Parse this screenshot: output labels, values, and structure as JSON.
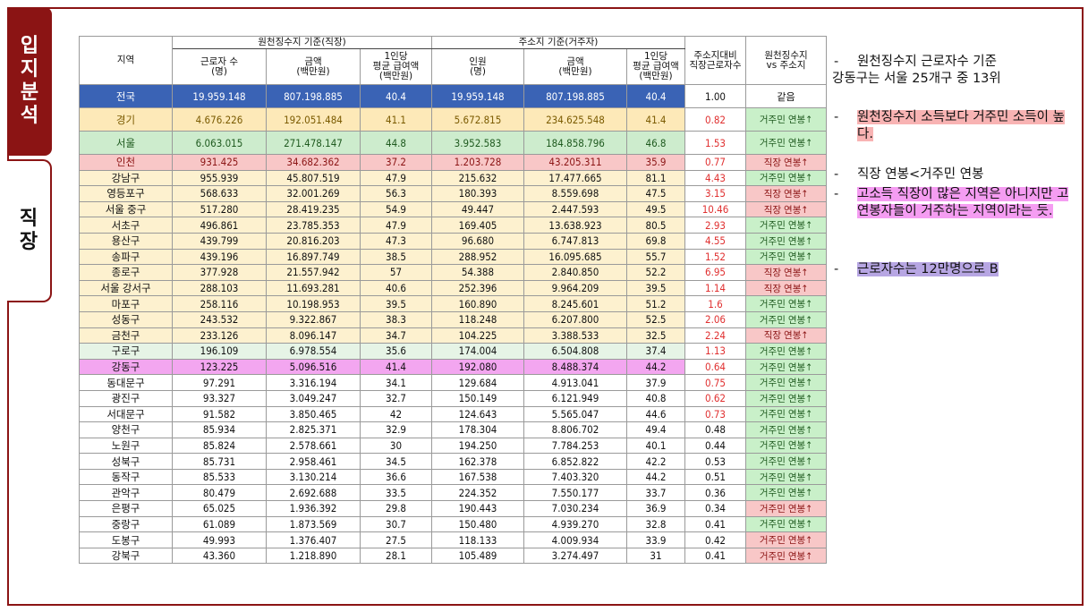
{
  "tabs": [
    {
      "label_chars": [
        "입",
        "지",
        "분",
        "석"
      ],
      "active": true
    },
    {
      "label_chars": [
        "직",
        "장"
      ],
      "active": false
    }
  ],
  "table": {
    "header": {
      "region": "지역",
      "group_workplace": "원천징수지 기준(직장)",
      "group_residence": "주소지 기준(거주자)",
      "workers": [
        "근로자 수",
        "(명)"
      ],
      "amount": [
        "금액",
        "(백만원)"
      ],
      "avg_pay": [
        "1인당",
        "평균 급여액",
        "(백만원)"
      ],
      "persons": [
        "인원",
        "(명)"
      ],
      "amount2": [
        "금액",
        "(백만원)"
      ],
      "avg_pay2": [
        "1인당",
        "평균 급여액",
        "(백만원)"
      ],
      "ratio": [
        "주소지대비",
        "직장근로자수"
      ],
      "compare": [
        "원천징수지",
        "vs 주소지"
      ]
    },
    "rows": [
      {
        "region": "전국",
        "workers": "19.959.148",
        "amount": "807.198.885",
        "avg": "40.4",
        "persons": "19.959.148",
        "amount2": "807.198.885",
        "avg2": "40.4",
        "ratio": "1.00",
        "tag": "같음",
        "style": "national",
        "ratio_color": "black",
        "tag_style": "same"
      },
      {
        "region": "경기",
        "workers": "4.676.226",
        "amount": "192.051.484",
        "avg": "41.1",
        "persons": "5.672.815",
        "amount2": "234.625.548",
        "avg2": "41.4",
        "ratio": "0.82",
        "tag": "거주민 연봉↑",
        "style": "gyeonggi",
        "ratio_color": "red",
        "tag_style": "res"
      },
      {
        "region": "서울",
        "workers": "6.063.015",
        "amount": "271.478.147",
        "avg": "44.8",
        "persons": "3.952.583",
        "amount2": "184.858.796",
        "avg2": "46.8",
        "ratio": "1.53",
        "tag": "거주민 연봉↑",
        "style": "seoul",
        "ratio_color": "red",
        "tag_style": "res"
      },
      {
        "region": "인천",
        "workers": "931.425",
        "amount": "34.682.362",
        "avg": "37.2",
        "persons": "1.203.728",
        "amount2": "43.205.311",
        "avg2": "35.9",
        "ratio": "0.77",
        "tag": "직장 연봉↑",
        "style": "incheon",
        "ratio_color": "red",
        "tag_style": "job"
      },
      {
        "region": "강남구",
        "workers": "955.939",
        "amount": "45.807.519",
        "avg": "47.9",
        "persons": "215.632",
        "amount2": "17.477.665",
        "avg2": "81.1",
        "ratio": "4.43",
        "tag": "거주민 연봉↑",
        "style": "yellow",
        "ratio_color": "red",
        "tag_style": "res"
      },
      {
        "region": "영등포구",
        "workers": "568.633",
        "amount": "32.001.269",
        "avg": "56.3",
        "persons": "180.393",
        "amount2": "8.559.698",
        "avg2": "47.5",
        "ratio": "3.15",
        "tag": "직장 연봉↑",
        "style": "yellow",
        "ratio_color": "red",
        "tag_style": "job"
      },
      {
        "region": "서울 중구",
        "workers": "517.280",
        "amount": "28.419.235",
        "avg": "54.9",
        "persons": "49.447",
        "amount2": "2.447.593",
        "avg2": "49.5",
        "ratio": "10.46",
        "tag": "직장 연봉↑",
        "style": "yellow",
        "ratio_color": "red",
        "tag_style": "job"
      },
      {
        "region": "서초구",
        "workers": "496.861",
        "amount": "23.785.353",
        "avg": "47.9",
        "persons": "169.405",
        "amount2": "13.638.923",
        "avg2": "80.5",
        "ratio": "2.93",
        "tag": "거주민 연봉↑",
        "style": "yellow",
        "ratio_color": "red",
        "tag_style": "res"
      },
      {
        "region": "용산구",
        "workers": "439.799",
        "amount": "20.816.203",
        "avg": "47.3",
        "persons": "96.680",
        "amount2": "6.747.813",
        "avg2": "69.8",
        "ratio": "4.55",
        "tag": "거주민 연봉↑",
        "style": "yellow",
        "ratio_color": "red",
        "tag_style": "res"
      },
      {
        "region": "송파구",
        "workers": "439.196",
        "amount": "16.897.749",
        "avg": "38.5",
        "persons": "288.952",
        "amount2": "16.095.685",
        "avg2": "55.7",
        "ratio": "1.52",
        "tag": "거주민 연봉↑",
        "style": "yellow",
        "ratio_color": "red",
        "tag_style": "res"
      },
      {
        "region": "종로구",
        "workers": "377.928",
        "amount": "21.557.942",
        "avg": "57",
        "persons": "54.388",
        "amount2": "2.840.850",
        "avg2": "52.2",
        "ratio": "6.95",
        "tag": "직장 연봉↑",
        "style": "yellow",
        "ratio_color": "red",
        "tag_style": "job"
      },
      {
        "region": "서울 강서구",
        "workers": "288.103",
        "amount": "11.693.281",
        "avg": "40.6",
        "persons": "252.396",
        "amount2": "9.964.209",
        "avg2": "39.5",
        "ratio": "1.14",
        "tag": "직장 연봉↑",
        "style": "yellow",
        "ratio_color": "red",
        "tag_style": "job"
      },
      {
        "region": "마포구",
        "workers": "258.116",
        "amount": "10.198.953",
        "avg": "39.5",
        "persons": "160.890",
        "amount2": "8.245.601",
        "avg2": "51.2",
        "ratio": "1.6",
        "tag": "거주민 연봉↑",
        "style": "yellow",
        "ratio_color": "red",
        "tag_style": "res"
      },
      {
        "region": "성동구",
        "workers": "243.532",
        "amount": "9.322.867",
        "avg": "38.3",
        "persons": "118.248",
        "amount2": "6.207.800",
        "avg2": "52.5",
        "ratio": "2.06",
        "tag": "거주민 연봉↑",
        "style": "yellow",
        "ratio_color": "red",
        "tag_style": "res"
      },
      {
        "region": "금천구",
        "workers": "233.126",
        "amount": "8.096.147",
        "avg": "34.7",
        "persons": "104.225",
        "amount2": "3.388.533",
        "avg2": "32.5",
        "ratio": "2.24",
        "tag": "직장 연봉↑",
        "style": "yellow",
        "ratio_color": "red",
        "tag_style": "job"
      },
      {
        "region": "구로구",
        "workers": "196.109",
        "amount": "6.978.554",
        "avg": "35.6",
        "persons": "174.004",
        "amount2": "6.504.808",
        "avg2": "37.4",
        "ratio": "1.13",
        "tag": "거주민 연봉↑",
        "style": "green",
        "ratio_color": "red",
        "tag_style": "res"
      },
      {
        "region": "강동구",
        "workers": "123.225",
        "amount": "5.096.516",
        "avg": "41.4",
        "persons": "192.080",
        "amount2": "8.488.374",
        "avg2": "44.2",
        "ratio": "0.64",
        "tag": "거주민 연봉↑",
        "style": "pink",
        "ratio_color": "red",
        "tag_style": "res"
      },
      {
        "region": "동대문구",
        "workers": "97.291",
        "amount": "3.316.194",
        "avg": "34.1",
        "persons": "129.684",
        "amount2": "4.913.041",
        "avg2": "37.9",
        "ratio": "0.75",
        "tag": "거주민 연봉↑",
        "style": "plain",
        "ratio_color": "red",
        "tag_style": "res"
      },
      {
        "region": "광진구",
        "workers": "93.327",
        "amount": "3.049.247",
        "avg": "32.7",
        "persons": "150.149",
        "amount2": "6.121.949",
        "avg2": "40.8",
        "ratio": "0.62",
        "tag": "거주민 연봉↑",
        "style": "plain",
        "ratio_color": "red",
        "tag_style": "res"
      },
      {
        "region": "서대문구",
        "workers": "91.582",
        "amount": "3.850.465",
        "avg": "42",
        "persons": "124.643",
        "amount2": "5.565.047",
        "avg2": "44.6",
        "ratio": "0.73",
        "tag": "거주민 연봉↑",
        "style": "plain",
        "ratio_color": "red",
        "tag_style": "res"
      },
      {
        "region": "양천구",
        "workers": "85.934",
        "amount": "2.825.371",
        "avg": "32.9",
        "persons": "178.304",
        "amount2": "8.806.702",
        "avg2": "49.4",
        "ratio": "0.48",
        "tag": "거주민 연봉↑",
        "style": "plain",
        "ratio_color": "black",
        "tag_style": "res"
      },
      {
        "region": "노원구",
        "workers": "85.824",
        "amount": "2.578.661",
        "avg": "30",
        "persons": "194.250",
        "amount2": "7.784.253",
        "avg2": "40.1",
        "ratio": "0.44",
        "tag": "거주민 연봉↑",
        "style": "plain",
        "ratio_color": "black",
        "tag_style": "res"
      },
      {
        "region": "성북구",
        "workers": "85.731",
        "amount": "2.958.461",
        "avg": "34.5",
        "persons": "162.378",
        "amount2": "6.852.822",
        "avg2": "42.2",
        "ratio": "0.53",
        "tag": "거주민 연봉↑",
        "style": "plain",
        "ratio_color": "black",
        "tag_style": "res"
      },
      {
        "region": "동작구",
        "workers": "85.533",
        "amount": "3.130.214",
        "avg": "36.6",
        "persons": "167.538",
        "amount2": "7.403.320",
        "avg2": "44.2",
        "ratio": "0.51",
        "tag": "거주민 연봉↑",
        "style": "plain",
        "ratio_color": "black",
        "tag_style": "res"
      },
      {
        "region": "관악구",
        "workers": "80.479",
        "amount": "2.692.688",
        "avg": "33.5",
        "persons": "224.352",
        "amount2": "7.550.177",
        "avg2": "33.7",
        "ratio": "0.36",
        "tag": "거주민 연봉↑",
        "style": "plain",
        "ratio_color": "black",
        "tag_style": "res"
      },
      {
        "region": "은평구",
        "workers": "65.025",
        "amount": "1.936.392",
        "avg": "29.8",
        "persons": "190.443",
        "amount2": "7.030.234",
        "avg2": "36.9",
        "ratio": "0.34",
        "tag": "거주민 연봉↑",
        "style": "plain",
        "ratio_color": "black",
        "tag_style": "job"
      },
      {
        "region": "중랑구",
        "workers": "61.089",
        "amount": "1.873.569",
        "avg": "30.7",
        "persons": "150.480",
        "amount2": "4.939.270",
        "avg2": "32.8",
        "ratio": "0.41",
        "tag": "거주민 연봉↑",
        "style": "plain",
        "ratio_color": "black",
        "tag_style": "res"
      },
      {
        "region": "도봉구",
        "workers": "49.993",
        "amount": "1.376.407",
        "avg": "27.5",
        "persons": "118.133",
        "amount2": "4.009.934",
        "avg2": "33.9",
        "ratio": "0.42",
        "tag": "거주민 연봉↑",
        "style": "plain",
        "ratio_color": "black",
        "tag_style": "job"
      },
      {
        "region": "강북구",
        "workers": "43.360",
        "amount": "1.218.890",
        "avg": "28.1",
        "persons": "105.489",
        "amount2": "3.274.497",
        "avg2": "31",
        "ratio": "0.41",
        "tag": "거주민 연봉↑",
        "style": "plain",
        "ratio_color": "black",
        "tag_style": "job"
      }
    ]
  },
  "notes": {
    "dash": "-",
    "n1_line1": "원천징수지 근로자수 기준",
    "n1_line2": "강동구는 서울 25개구 중 13위",
    "n2": "원천징수지 소득보다 거주민 소득이 높다.",
    "n3": "직장 연봉<거주민 연봉",
    "n4": "고소득 직장이 많은 지역은 아니지만 고연봉자들이 거주하는 지역이라는 듯.",
    "n5": "근로자수는 12만명으로 B"
  },
  "colors": {
    "brand": "#8b1414",
    "national_row": "#3a63b5",
    "gyeonggi_row": "#fde9b8",
    "seoul_row": "#cdeccd",
    "incheon_row": "#f8c7c7",
    "highlight_row": "#f3a6f0",
    "ratio_red": "#e03030"
  }
}
